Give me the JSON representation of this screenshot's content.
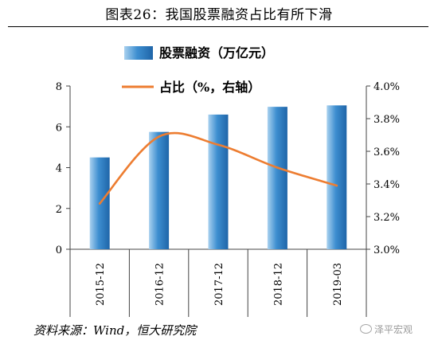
{
  "title": "图表26：我国股票融资占比有所下滑",
  "source_note": "资料来源：Wind，恒大研究院",
  "watermark_text": "泽平宏观",
  "colors": {
    "bar_light": "#a9d1ef",
    "bar_mid": "#3d8ed0",
    "bar_dark": "#1f65a8",
    "line": "#ed7d31",
    "axis": "#444444"
  },
  "chart_data": {
    "type": "bar",
    "categories": [
      "2015-12",
      "2016-12",
      "2017-12",
      "2018-12",
      "2019-03"
    ],
    "series": [
      {
        "name": "股票融资（万亿元）",
        "type": "bar",
        "axis": "left",
        "values": [
          4.5,
          5.75,
          6.6,
          6.98,
          7.05
        ]
      },
      {
        "name": "占比（%，右轴）",
        "type": "line",
        "axis": "right",
        "values": [
          3.28,
          3.69,
          3.64,
          3.5,
          3.39
        ]
      }
    ],
    "y_left": {
      "min": 0,
      "max": 8,
      "ticks": [
        0,
        2,
        4,
        6,
        8
      ],
      "tick_labels": [
        "0",
        "2",
        "4",
        "6",
        "8"
      ]
    },
    "y_right": {
      "min": 3.0,
      "max": 4.0,
      "ticks": [
        3.0,
        3.2,
        3.4,
        3.6,
        3.8,
        4.0
      ],
      "tick_labels": [
        "3.0%",
        "3.2%",
        "3.4%",
        "3.6%",
        "3.8%",
        "4.0%"
      ]
    },
    "x_tick_rotation": "vertical",
    "grid": false,
    "legend_position": "top-center"
  }
}
